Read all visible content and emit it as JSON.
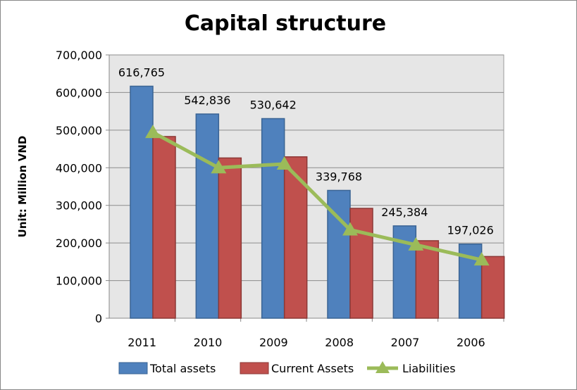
{
  "chart_data": {
    "type": "bar",
    "title": "Capital structure",
    "ylabel": "Unit: Million VND",
    "xlabel": "",
    "categories": [
      "2011",
      "2010",
      "2009",
      "2008",
      "2007",
      "2006"
    ],
    "ylim": [
      0,
      700000
    ],
    "yticks": [
      0,
      100000,
      200000,
      300000,
      400000,
      500000,
      600000,
      700000
    ],
    "ytick_labels": [
      "0",
      "100,000",
      "200,000",
      "300,000",
      "400,000",
      "500,000",
      "600,000",
      "700,000"
    ],
    "grid": true,
    "legend_position": "bottom",
    "series": [
      {
        "name": "Total assets",
        "type": "bar",
        "color": "#4f81bd",
        "values": [
          616765,
          542836,
          530642,
          339768,
          245384,
          197026
        ],
        "data_labels": [
          "616,765",
          "542,836",
          "530,642",
          "339,768",
          "245,384",
          "197,026"
        ]
      },
      {
        "name": "Current Assets",
        "type": "bar",
        "color": "#c0504d",
        "values": [
          483000,
          426000,
          429000,
          292000,
          206000,
          164000
        ]
      },
      {
        "name": "Liabilities",
        "type": "line",
        "marker": "triangle",
        "color": "#9bbb59",
        "values": [
          494000,
          400000,
          410000,
          235000,
          195000,
          155000
        ]
      }
    ],
    "plot_background": "#e6e6e6"
  }
}
